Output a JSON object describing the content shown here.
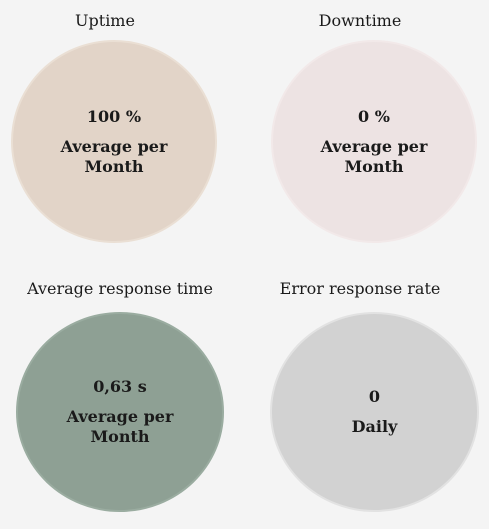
{
  "metrics": [
    {
      "title": "Uptime",
      "value": "100 %",
      "period": "Average per Month",
      "color": "#e2d4c8"
    },
    {
      "title": "Downtime",
      "value": "0 %",
      "period": "Average per Month",
      "color": "#ede3e3"
    },
    {
      "title": "Average response time",
      "value": "0,63 s",
      "period": "Average per Month",
      "color": "#8ea094"
    },
    {
      "title": "Error response rate",
      "value": "0",
      "period": "Daily",
      "color": "#d2d2d2"
    }
  ]
}
